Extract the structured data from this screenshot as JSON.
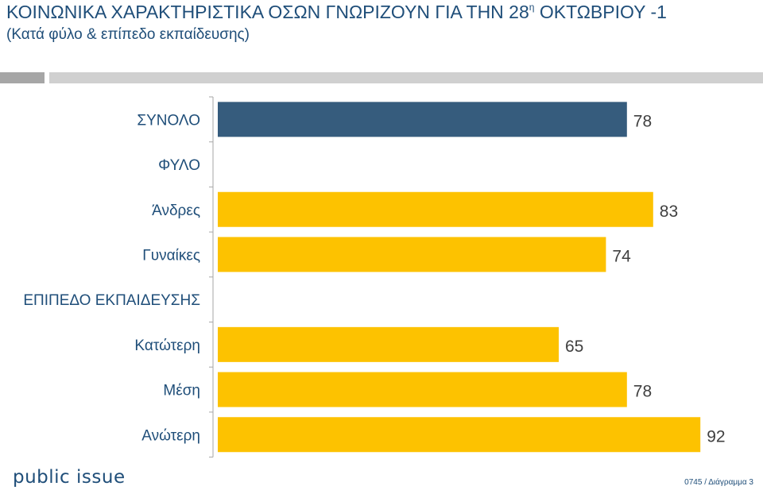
{
  "header": {
    "title_main": "ΚΟΙΝΩΝΙΚΑ ΧΑΡΑΚΤΗΡΙΣΤΙΚΑ ΟΣΩΝ ΓΝΩΡΙΖΟΥΝ ΓΙΑ ΤΗΝ 28",
    "title_sup": "η",
    "title_end": " ΟΚΤΩΒΡΙΟΥ -1",
    "subtitle": "(Κατά φύλο & επίπεδο εκπαίδευσης)"
  },
  "footer": {
    "logo": "public issue",
    "note": "0745 / Διάγραμμα 3"
  },
  "colors": {
    "total": "#365c7d",
    "group": "#fdc200",
    "label_text": "#1f4e79",
    "value_text": "#404040",
    "axis": "#a6a6a6"
  },
  "chart_data": {
    "type": "bar",
    "orientation": "horizontal",
    "categories": [
      "ΣΥΝΟΛΟ",
      "ΦΥΛΟ",
      "Άνδρες",
      "Γυναίκες",
      "ΕΠΙΠΕΔΟ ΕΚΠΑΙΔΕΥΣΗΣ",
      "Κατώτερη",
      "Μέση",
      "Ανώτερη"
    ],
    "values": [
      78,
      null,
      83,
      74,
      null,
      65,
      78,
      92
    ],
    "bar_kind": [
      "total",
      "header",
      "group",
      "group",
      "header",
      "group",
      "group",
      "group"
    ],
    "xlim": [
      0,
      100
    ],
    "grid": false,
    "legend": "none"
  }
}
